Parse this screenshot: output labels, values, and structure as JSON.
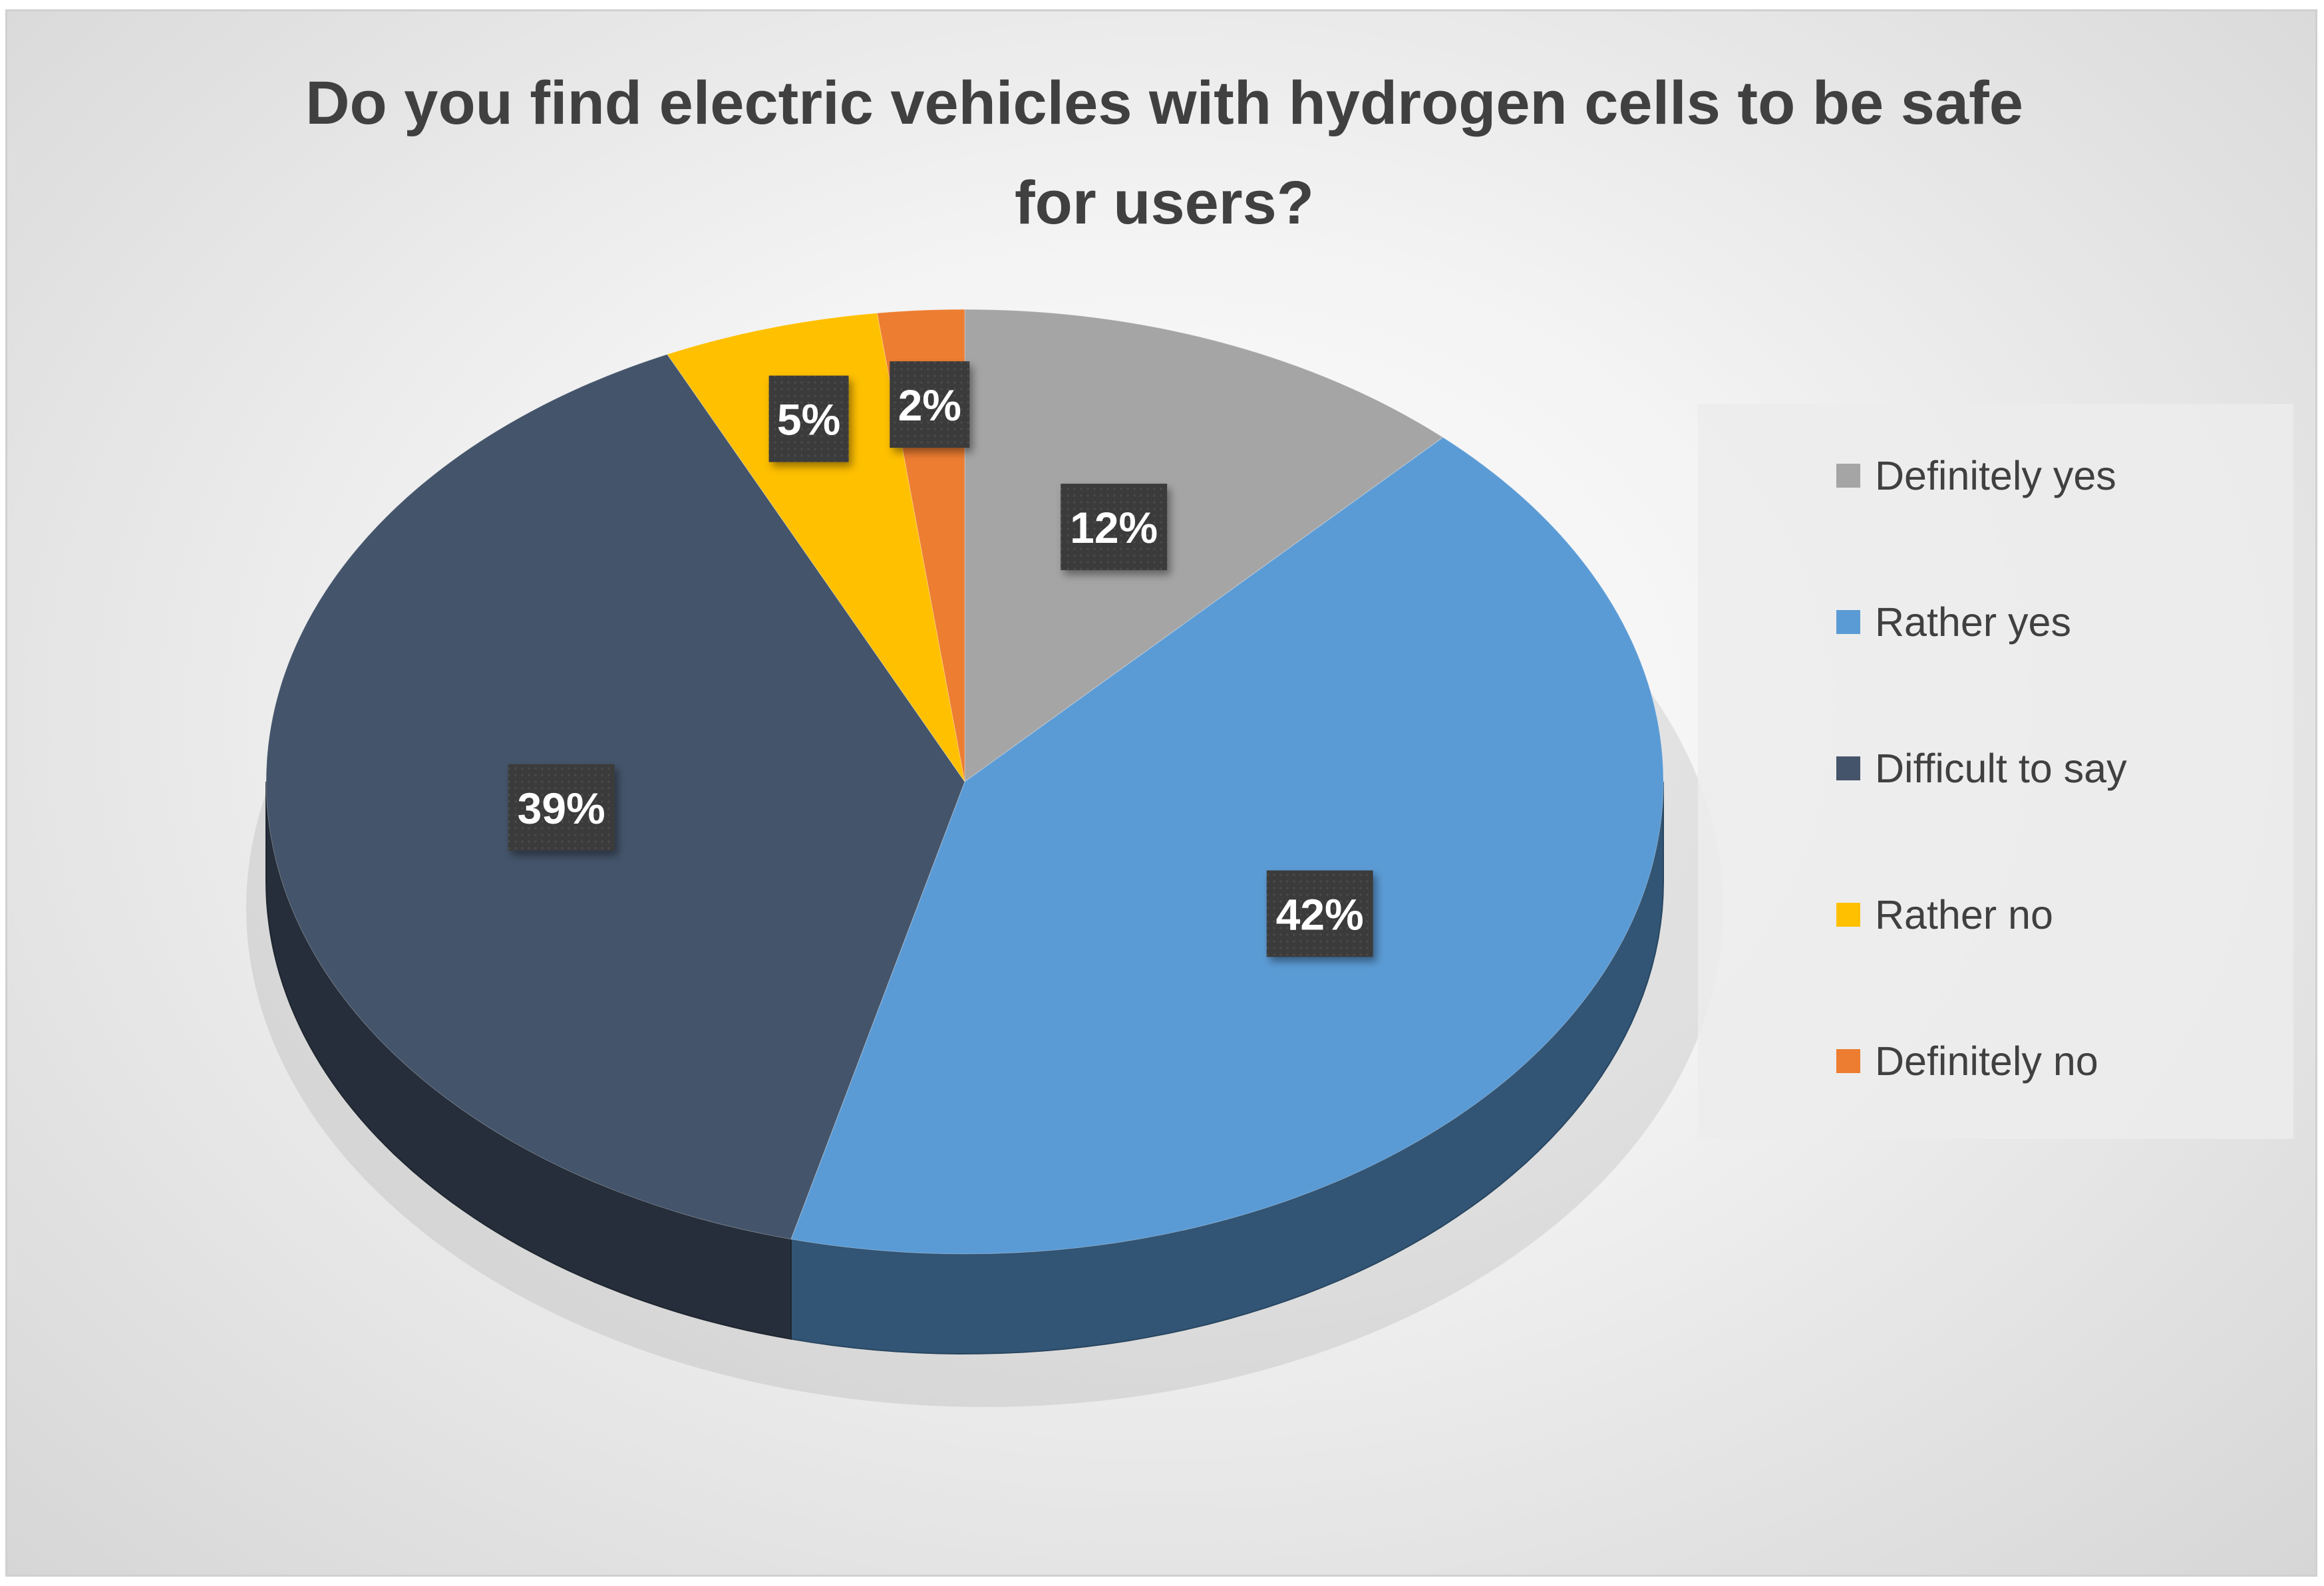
{
  "chart_data": {
    "type": "pie",
    "title": "Do you find electric vehicles with hydrogen cells to be safe for users?",
    "title_lines": [
      "Do you find electric vehicles with hydrogen cells to be safe",
      "for users?"
    ],
    "categories": [
      "Definitely yes",
      "Rather yes",
      "Difficult to say",
      "Rather no",
      "Definitely no"
    ],
    "values": [
      12,
      42,
      39,
      5,
      2
    ],
    "labels": [
      "12%",
      "42%",
      "39%",
      "5%",
      "2%"
    ],
    "colors": [
      "#a5a5a5",
      "#5b9bd5",
      "#44546a",
      "#ffc000",
      "#ed7d31"
    ],
    "legend_position": "right",
    "style": "3d-pie"
  }
}
